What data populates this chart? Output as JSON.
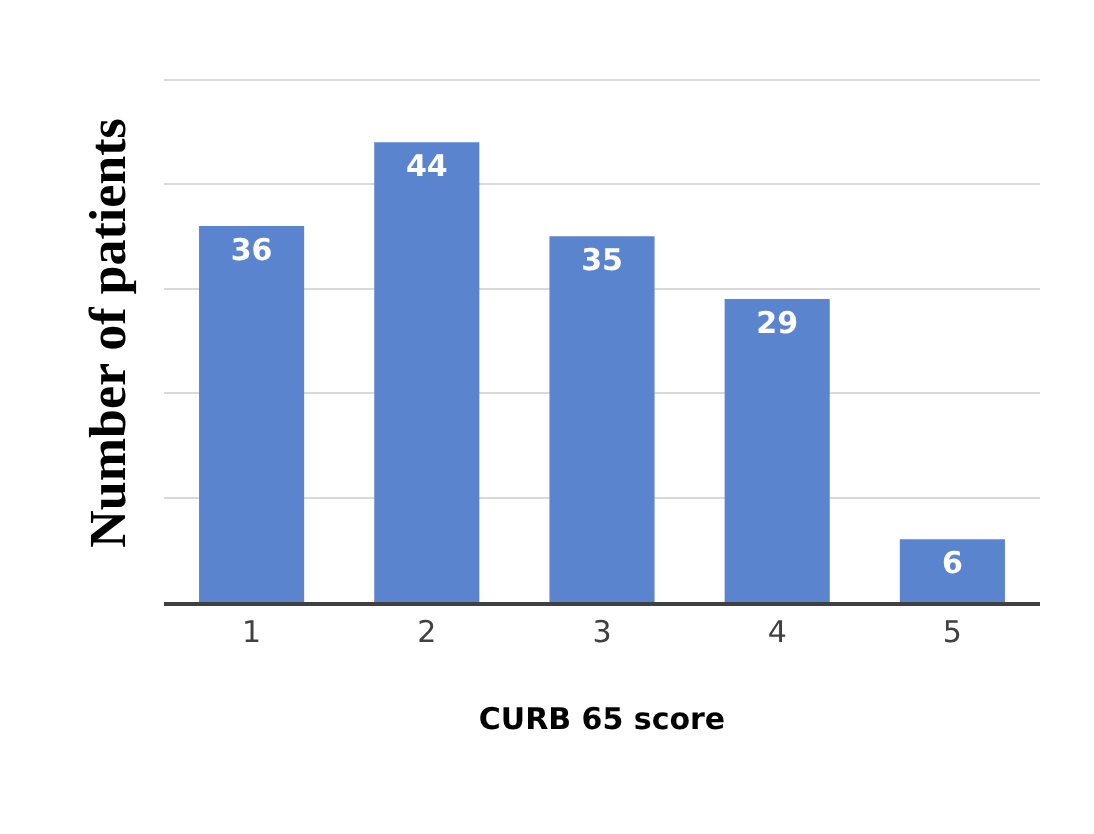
{
  "chart_data": {
    "type": "bar",
    "xlabel": "CURB 65 score",
    "ylabel": "Number of patients",
    "categories": [
      "1",
      "2",
      "3",
      "4",
      "5"
    ],
    "values": [
      36,
      44,
      35,
      29,
      6
    ],
    "color": "#5b84cf",
    "yticks": [
      {
        "value": 0,
        "label": null
      },
      {
        "value": 10,
        "label": null
      },
      {
        "value": 20,
        "label": null
      },
      {
        "value": 30,
        "label": null
      },
      {
        "value": 40,
        "label": null
      },
      {
        "value": 50,
        "label": null
      }
    ],
    "tick_labels": "x",
    "grid": "y",
    "data_labels": true,
    "legend": false
  }
}
